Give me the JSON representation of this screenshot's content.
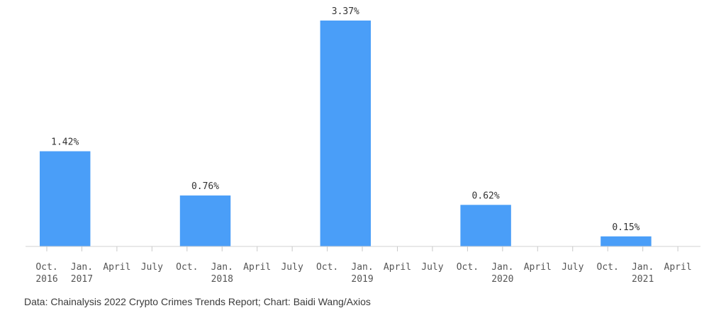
{
  "chart_data": {
    "type": "bar",
    "categories": [
      "Oct. 2016 – Jan. 2017",
      "Oct. 2017 – Jan. 2018",
      "Oct. 2018 – Jan. 2019",
      "Oct. 2019 – Jan. 2020",
      "Oct. 2020 – Jan. 2021"
    ],
    "values": [
      1.42,
      0.76,
      3.37,
      0.62,
      0.15
    ],
    "value_labels": [
      "1.42%",
      "0.76%",
      "3.37%",
      "0.62%",
      "0.15%"
    ],
    "unit": "%",
    "ylim": [
      0,
      3.37
    ],
    "grid": false,
    "bar_color": "#4a9ef8",
    "x_ticks": [
      {
        "label": "Oct.",
        "sublabel": "2016"
      },
      {
        "label": "Jan.",
        "sublabel": "2017"
      },
      {
        "label": "April",
        "sublabel": ""
      },
      {
        "label": "July",
        "sublabel": ""
      },
      {
        "label": "Oct.",
        "sublabel": ""
      },
      {
        "label": "Jan.",
        "sublabel": "2018"
      },
      {
        "label": "April",
        "sublabel": ""
      },
      {
        "label": "July",
        "sublabel": ""
      },
      {
        "label": "Oct.",
        "sublabel": ""
      },
      {
        "label": "Jan.",
        "sublabel": "2019"
      },
      {
        "label": "April",
        "sublabel": ""
      },
      {
        "label": "July",
        "sublabel": ""
      },
      {
        "label": "Oct.",
        "sublabel": ""
      },
      {
        "label": "Jan.",
        "sublabel": "2020"
      },
      {
        "label": "April",
        "sublabel": ""
      },
      {
        "label": "July",
        "sublabel": ""
      },
      {
        "label": "Oct.",
        "sublabel": ""
      },
      {
        "label": "Jan.",
        "sublabel": "2021"
      },
      {
        "label": "April",
        "sublabel": ""
      }
    ],
    "source": "Data: Chainalysis 2022 Crypto Crimes Trends Report; Chart: Baidi Wang/Axios"
  }
}
